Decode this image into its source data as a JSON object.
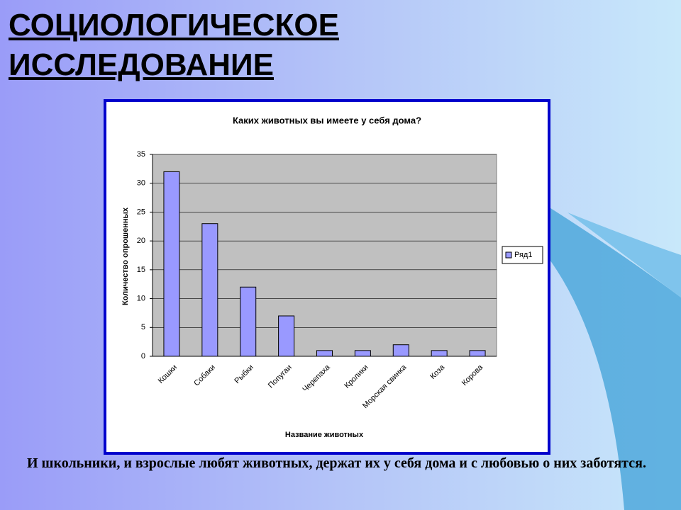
{
  "slide": {
    "title": "СОЦИОЛОГИЧЕСКОЕ ИССЛЕДОВАНИЕ",
    "caption": "И школьники, и взрослые любят животных, держат их у себя дома и с любовью о них заботятся."
  },
  "chart_data": {
    "type": "bar",
    "title": "Каких животных вы имеете у себя дома?",
    "x_label": "Название животных",
    "y_label": "Количество опрошенных",
    "categories": [
      "Кошки",
      "Собаки",
      "Рыбки",
      "Попугаи",
      "Черепаха",
      "Кролики",
      "Морская свинка",
      "Коза",
      "Корова"
    ],
    "series": [
      {
        "name": "Ряд1",
        "color": "#9999ff",
        "values": [
          32,
          23,
          12,
          7,
          1,
          1,
          2,
          1,
          1
        ]
      }
    ],
    "ylim": [
      0,
      35
    ],
    "yticks": [
      0,
      5,
      10,
      15,
      20,
      25,
      30,
      35
    ],
    "grid": true,
    "legend": "right"
  }
}
